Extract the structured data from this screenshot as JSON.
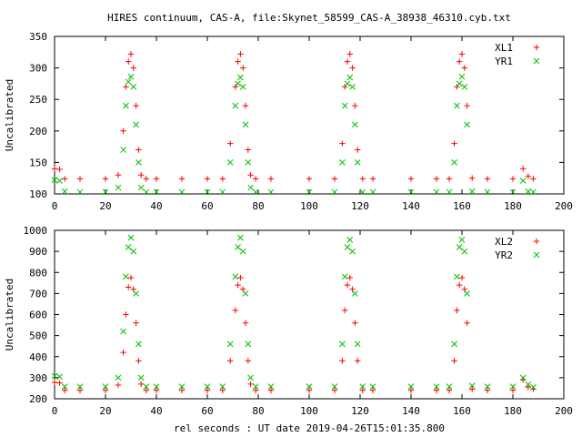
{
  "figure_title": "HIRES continuum, CAS-A, file:Skynet_58599_CAS-A_38938_46310.cyb.txt",
  "x_axis_label": "rel seconds : UT date 2019-04-26T15:01:35.800",
  "colors": {
    "red": "#ff0000",
    "green": "#00c000",
    "axis": "#000000"
  },
  "chart_data": [
    {
      "type": "scatter",
      "title": "",
      "xlabel": "",
      "ylabel": "Uncalibrated",
      "xlim": [
        0,
        200
      ],
      "ylim": [
        100,
        350
      ],
      "xticks": [
        0,
        20,
        40,
        60,
        80,
        100,
        120,
        140,
        160,
        180,
        200
      ],
      "yticks": [
        100,
        150,
        200,
        250,
        300,
        350
      ],
      "x": [
        0,
        2,
        4,
        10,
        20,
        25,
        27,
        28,
        29,
        30,
        31,
        32,
        33,
        34,
        36,
        40,
        50,
        60,
        66,
        69,
        71,
        72,
        73,
        74,
        75,
        76,
        77,
        79,
        85,
        100,
        110,
        113,
        114,
        115,
        116,
        117,
        118,
        119,
        121,
        125,
        140,
        150,
        155,
        157,
        158,
        159,
        160,
        161,
        162,
        164,
        170,
        180,
        184,
        186,
        188
      ],
      "series": [
        {
          "name": "XL1",
          "marker": "+",
          "color": "#ff0000",
          "values": [
            140,
            139,
            124,
            124,
            124,
            130,
            200,
            270,
            310,
            322,
            300,
            240,
            170,
            130,
            124,
            124,
            124,
            124,
            124,
            180,
            270,
            310,
            322,
            300,
            240,
            170,
            130,
            124,
            124,
            124,
            124,
            180,
            270,
            310,
            322,
            300,
            240,
            170,
            124,
            124,
            124,
            124,
            124,
            180,
            270,
            310,
            322,
            300,
            240,
            125,
            124,
            124,
            140,
            128,
            124
          ]
        },
        {
          "name": "YR1",
          "marker": "x",
          "color": "#00c000",
          "values": [
            122,
            121,
            104,
            103,
            103,
            110,
            170,
            240,
            278,
            286,
            270,
            210,
            150,
            110,
            103,
            103,
            103,
            103,
            103,
            150,
            240,
            275,
            285,
            270,
            210,
            150,
            110,
            103,
            103,
            103,
            103,
            150,
            240,
            275,
            285,
            270,
            210,
            150,
            103,
            103,
            103,
            103,
            103,
            150,
            240,
            275,
            286,
            270,
            210,
            104,
            103,
            103,
            121,
            104,
            103
          ]
        }
      ],
      "legend": "top-right",
      "grid": false
    },
    {
      "type": "scatter",
      "title": "",
      "xlabel": "rel seconds : UT date 2019-04-26T15:01:35.800",
      "ylabel": "Uncalibrated",
      "xlim": [
        0,
        200
      ],
      "ylim": [
        200,
        1000
      ],
      "xticks": [
        0,
        20,
        40,
        60,
        80,
        100,
        120,
        140,
        160,
        180,
        200
      ],
      "yticks": [
        200,
        300,
        400,
        500,
        600,
        700,
        800,
        900,
        1000
      ],
      "x": [
        0,
        2,
        4,
        10,
        20,
        25,
        27,
        28,
        29,
        30,
        31,
        32,
        33,
        34,
        36,
        40,
        50,
        60,
        66,
        69,
        71,
        72,
        73,
        74,
        75,
        76,
        77,
        79,
        85,
        100,
        110,
        113,
        114,
        115,
        116,
        117,
        118,
        119,
        121,
        125,
        140,
        150,
        155,
        157,
        158,
        159,
        160,
        161,
        162,
        164,
        170,
        180,
        184,
        186,
        188
      ],
      "series": [
        {
          "name": "XL2",
          "marker": "+",
          "color": "#ff0000",
          "values": [
            278,
            275,
            240,
            240,
            240,
            265,
            420,
            600,
            730,
            775,
            720,
            560,
            380,
            270,
            240,
            240,
            240,
            240,
            240,
            380,
            620,
            740,
            775,
            720,
            560,
            380,
            270,
            240,
            240,
            240,
            240,
            380,
            620,
            740,
            775,
            720,
            560,
            380,
            240,
            240,
            240,
            240,
            240,
            380,
            620,
            740,
            775,
            720,
            560,
            245,
            240,
            240,
            290,
            255,
            245
          ]
        },
        {
          "name": "YR2",
          "marker": "x",
          "color": "#00c000",
          "values": [
            308,
            305,
            258,
            258,
            258,
            300,
            520,
            780,
            920,
            965,
            900,
            700,
            460,
            300,
            258,
            258,
            258,
            258,
            258,
            460,
            780,
            920,
            965,
            900,
            700,
            460,
            300,
            258,
            258,
            258,
            258,
            460,
            780,
            920,
            955,
            900,
            700,
            460,
            258,
            258,
            258,
            258,
            258,
            460,
            780,
            920,
            955,
            900,
            700,
            262,
            258,
            258,
            300,
            268,
            255
          ]
        }
      ],
      "legend": "top-right",
      "grid": false
    }
  ]
}
